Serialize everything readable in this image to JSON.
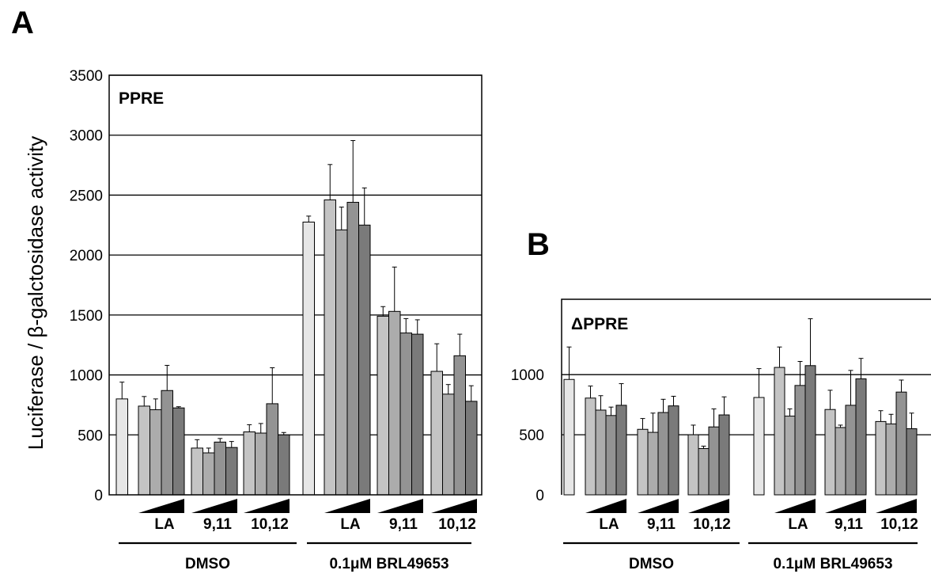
{
  "ylabel": "Luciferase / β-galctosidase activity",
  "panels": [
    {
      "letter": "A",
      "inset": "PPRE",
      "yticks": [
        "0",
        "500",
        "1000",
        "1500",
        "2000",
        "2500",
        "3000",
        "3500"
      ]
    },
    {
      "letter": "B",
      "inset": "ΔPPRE",
      "yticks": [
        "0",
        "500",
        "1000"
      ]
    }
  ],
  "category_labels": [
    "LA",
    "9,11",
    "10,12",
    "LA",
    "9,11",
    "10,12"
  ],
  "group_labels": [
    "DMSO",
    "0.1μM BRL49653"
  ],
  "colors": {
    "control": "#e6e6e6",
    "dose1": "#c4c4c4",
    "dose2": "#acacac",
    "dose3": "#939393",
    "dose4": "#7a7a7a",
    "axis": "#000000"
  },
  "chart_data": [
    {
      "type": "bar",
      "panel": "A",
      "title": "PPRE",
      "ylabel": "Luciferase / β-galctosidase activity",
      "ylim": [
        0,
        3500
      ],
      "groups": [
        {
          "name": "DMSO",
          "control": {
            "value": 800,
            "error": 140
          },
          "treatments": [
            {
              "name": "LA",
              "values": [
                740,
                710,
                870,
                725
              ],
              "errors": [
                80,
                90,
                210,
                10
              ]
            },
            {
              "name": "9,11",
              "values": [
                390,
                350,
                440,
                395
              ],
              "errors": [
                70,
                40,
                30,
                50
              ]
            },
            {
              "name": "10,12",
              "values": [
                525,
                515,
                760,
                500
              ],
              "errors": [
                60,
                80,
                300,
                20
              ]
            }
          ]
        },
        {
          "name": "0.1μM BRL49653",
          "control": {
            "value": 2275,
            "error": 50
          },
          "treatments": [
            {
              "name": "LA",
              "values": [
                2460,
                2210,
                2440,
                2250
              ],
              "errors": [
                295,
                190,
                515,
                310
              ]
            },
            {
              "name": "9,11",
              "values": [
                1490,
                1530,
                1350,
                1340
              ],
              "errors": [
                80,
                370,
                120,
                120
              ]
            },
            {
              "name": "10,12",
              "values": [
                1030,
                840,
                1160,
                780
              ],
              "errors": [
                230,
                80,
                180,
                130
              ]
            }
          ]
        }
      ]
    },
    {
      "type": "bar",
      "panel": "B",
      "title": "ΔPPRE",
      "ylim": [
        0,
        1500
      ],
      "groups": [
        {
          "name": "DMSO",
          "control": {
            "value": 960,
            "error": 270
          },
          "treatments": [
            {
              "name": "LA",
              "values": [
                805,
                705,
                660,
                745
              ],
              "errors": [
                100,
                120,
                70,
                180
              ]
            },
            {
              "name": "9,11",
              "values": [
                545,
                520,
                685,
                740
              ],
              "errors": [
                90,
                160,
                110,
                80
              ]
            },
            {
              "name": "10,12",
              "values": [
                500,
                385,
                565,
                665
              ],
              "errors": [
                80,
                20,
                150,
                150
              ]
            }
          ]
        },
        {
          "name": "0.1μM BRL49653",
          "control": {
            "value": 810,
            "error": 240
          },
          "treatments": [
            {
              "name": "LA",
              "values": [
                1060,
                655,
                910,
                1075
              ],
              "errors": [
                170,
                60,
                200,
                390
              ]
            },
            {
              "name": "9,11",
              "values": [
                710,
                560,
                745,
                965
              ],
              "errors": [
                160,
                20,
                290,
                170
              ]
            },
            {
              "name": "10,12",
              "values": [
                610,
                590,
                855,
                550
              ],
              "errors": [
                90,
                80,
                100,
                130
              ]
            }
          ]
        }
      ]
    }
  ]
}
